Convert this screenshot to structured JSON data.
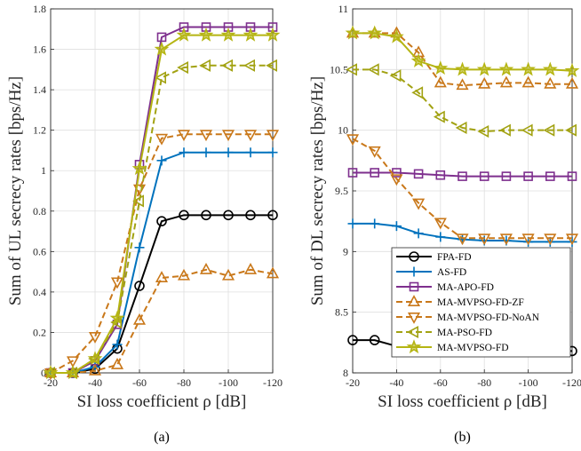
{
  "series_styles": [
    {
      "name": "FPA-FD",
      "color": "#000000",
      "marker": "circle",
      "dashed": false
    },
    {
      "name": "AS-FD",
      "color": "#0072BD",
      "marker": "plus",
      "dashed": false
    },
    {
      "name": "MA-APO-FD",
      "color": "#7E2F8E",
      "marker": "square",
      "dashed": false
    },
    {
      "name": "MA-MVPSO-FD-ZF",
      "color": "#C9781A",
      "marker": "triangle-up",
      "dashed": true
    },
    {
      "name": "MA-MVPSO-FD-NoAN",
      "color": "#C9781A",
      "marker": "triangle-down",
      "dashed": true
    },
    {
      "name": "MA-PSO-FD",
      "color": "#A2A212",
      "marker": "triangle-left",
      "dashed": true
    },
    {
      "name": "MA-MVPSO-FD",
      "color": "#B5B513",
      "marker": "star",
      "dashed": false
    }
  ],
  "chart_data": [
    {
      "type": "line",
      "caption": "(a)",
      "xlabel": "SI loss coefficient ρ [dB]",
      "ylabel": "Sum of UL secrecy rates [bps/Hz]",
      "x": [
        -20,
        -30,
        -40,
        -50,
        -60,
        -70,
        -80,
        -90,
        -100,
        -110,
        -120
      ],
      "xticks": [
        "-20",
        "-40",
        "-60",
        "-80",
        "-100",
        "-120"
      ],
      "yticks": [
        "0",
        "0.2",
        "0.4",
        "0.6",
        "0.8",
        "1",
        "1.2",
        "1.4",
        "1.6",
        "1.8"
      ],
      "ylim": [
        0,
        1.8
      ],
      "grid": true,
      "series": [
        {
          "name": "FPA-FD",
          "values": [
            0,
            0,
            0.02,
            0.12,
            0.43,
            0.75,
            0.78,
            0.78,
            0.78,
            0.78,
            0.78
          ]
        },
        {
          "name": "AS-FD",
          "values": [
            0,
            0,
            0.03,
            0.14,
            0.62,
            1.05,
            1.09,
            1.09,
            1.09,
            1.09,
            1.09
          ]
        },
        {
          "name": "MA-APO-FD",
          "values": [
            0,
            0,
            0.06,
            0.24,
            1.03,
            1.66,
            1.71,
            1.71,
            1.71,
            1.71,
            1.71
          ]
        },
        {
          "name": "MA-MVPSO-FD-ZF",
          "values": [
            0,
            0,
            0.01,
            0.04,
            0.26,
            0.47,
            0.48,
            0.51,
            0.48,
            0.51,
            0.49
          ]
        },
        {
          "name": "MA-MVPSO-FD-NoAN",
          "values": [
            0,
            0.06,
            0.18,
            0.45,
            0.91,
            1.16,
            1.18,
            1.18,
            1.18,
            1.18,
            1.18
          ]
        },
        {
          "name": "MA-PSO-FD",
          "values": [
            0,
            0,
            0.07,
            0.25,
            0.85,
            1.46,
            1.51,
            1.52,
            1.52,
            1.52,
            1.52
          ]
        },
        {
          "name": "MA-MVPSO-FD",
          "values": [
            0,
            0,
            0.07,
            0.27,
            1.01,
            1.6,
            1.67,
            1.67,
            1.67,
            1.67,
            1.67
          ]
        }
      ]
    },
    {
      "type": "line",
      "caption": "(b)",
      "xlabel": "SI loss coefficient ρ [dB]",
      "ylabel": "Sum of DL secrecy rates [bps/Hz]",
      "x": [
        -20,
        -30,
        -40,
        -50,
        -60,
        -70,
        -80,
        -90,
        -100,
        -110,
        -120
      ],
      "xticks": [
        "-20",
        "-40",
        "-60",
        "-80",
        "-100",
        "-120"
      ],
      "yticks": [
        "8",
        "8.5",
        "9",
        "9.5",
        "10",
        "10.5",
        "11"
      ],
      "ylim": [
        8,
        11
      ],
      "grid": true,
      "legend": "bottom-right",
      "series": [
        {
          "name": "FPA-FD",
          "values": [
            8.27,
            8.27,
            8.22,
            8.19,
            8.18,
            8.18,
            8.18,
            8.18,
            8.18,
            8.18,
            8.18
          ]
        },
        {
          "name": "AS-FD",
          "values": [
            9.23,
            9.23,
            9.21,
            9.15,
            9.12,
            9.1,
            9.09,
            9.09,
            9.08,
            9.08,
            9.08
          ]
        },
        {
          "name": "MA-APO-FD",
          "values": [
            9.65,
            9.65,
            9.65,
            9.64,
            9.63,
            9.62,
            9.62,
            9.62,
            9.62,
            9.62,
            9.62
          ]
        },
        {
          "name": "MA-MVPSO-FD-ZF",
          "values": [
            10.8,
            10.8,
            10.8,
            10.64,
            10.39,
            10.37,
            10.38,
            10.39,
            10.39,
            10.38,
            10.38
          ]
        },
        {
          "name": "MA-MVPSO-FD-NoAN",
          "values": [
            9.93,
            9.83,
            9.6,
            9.4,
            9.24,
            9.11,
            9.11,
            9.11,
            9.11,
            9.11,
            9.11
          ]
        },
        {
          "name": "MA-PSO-FD",
          "values": [
            10.5,
            10.5,
            10.45,
            10.31,
            10.11,
            10.02,
            9.99,
            10.0,
            10.0,
            10.0,
            10.0
          ]
        },
        {
          "name": "MA-MVPSO-FD",
          "values": [
            10.8,
            10.8,
            10.77,
            10.57,
            10.51,
            10.5,
            10.5,
            10.5,
            10.5,
            10.5,
            10.49
          ]
        }
      ]
    }
  ]
}
